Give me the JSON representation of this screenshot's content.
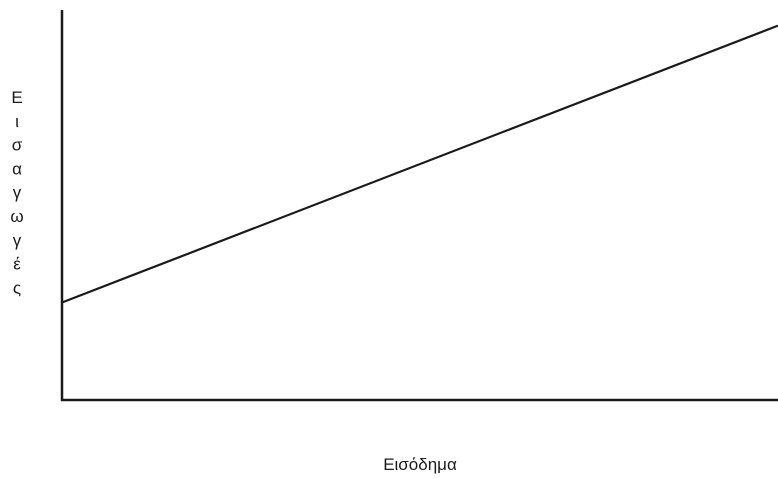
{
  "chart_data": {
    "type": "line",
    "title": "",
    "xlabel": "Εισόδημα",
    "ylabel": "Εισαγωγές",
    "xlim": [
      0,
      100
    ],
    "ylim": [
      0,
      100
    ],
    "grid": false,
    "series": [
      {
        "values": [
          {
            "x": 0,
            "y": 25
          },
          {
            "x": 100,
            "y": 96
          }
        ]
      }
    ],
    "colors": {
      "axis": "#1a1a1a",
      "line": "#1a1a1a"
    }
  }
}
